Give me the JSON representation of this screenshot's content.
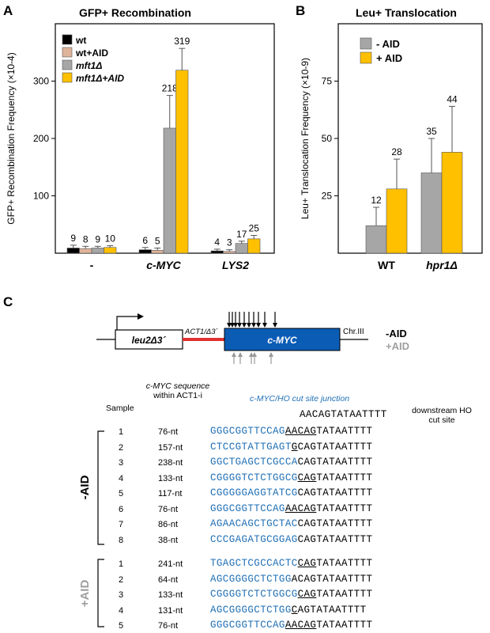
{
  "panelA": {
    "letter": "A",
    "title": "GFP+ Recombination",
    "ylabel": "GFP+ Recombination Frequency (×10-4)",
    "legend": [
      "wt",
      "wt+AID",
      "mft1Δ",
      "mft1Δ+AID"
    ]
  },
  "panelB": {
    "letter": "B",
    "title": "Leu+ Translocation",
    "ylabel": "Leu+ Translocation Frequency (×10-9)",
    "legend": [
      "- AID",
      "+ AID"
    ]
  },
  "panelC": {
    "letter": "C",
    "construct": {
      "leu_label": "leu2Δ3´",
      "act_label": "ACT1/Δ3´",
      "myc_label": "c-MYC",
      "chr_label": "Chr.III",
      "minus_aid": "-AID",
      "plus_aid": "+AID"
    },
    "headers": {
      "sample": "Sample",
      "seq_line1": "c-MYC sequence",
      "seq_line2": "within ACT1-i",
      "junction": "c-MYC/HO cut site junction",
      "downstream": "downstream HO cut site",
      "ref_seq": "AACAGTATAATTTT"
    },
    "groups": [
      {
        "label": "-AID",
        "rows": [
          {
            "n": "1",
            "len": "76-nt",
            "blue": "GGGCGGTTCCAG",
            "under": "AACAG",
            "rest": "TATAATTTT"
          },
          {
            "n": "2",
            "len": "157-nt",
            "blue": "CTCCGTATTGAGT",
            "under": "G",
            "rest": "CAGTATAATTTT"
          },
          {
            "n": "3",
            "len": "238-nt",
            "blue": "GGCTGAGCTCGCCA",
            "under": "",
            "rest": "CAGTATAATTTT"
          },
          {
            "n": "4",
            "len": "133-nt",
            "blue": "CGGGGTCTCTGGCG",
            "under": "CAG",
            "rest": "TATAATTTT"
          },
          {
            "n": "5",
            "len": "117-nt",
            "blue": "CGGGGGAGGTATCG",
            "under": "",
            "rest": "CAGTATAATTTT"
          },
          {
            "n": "6",
            "len": "76-nt",
            "blue": "GGGCGGTTCCAG",
            "under": "AACAG",
            "rest": "TATAATTTT"
          },
          {
            "n": "7",
            "len": "86-nt",
            "blue": "AGAACAGCTGCTAC",
            "under": "",
            "rest": "CAGTATAATTTT"
          },
          {
            "n": "8",
            "len": "38-nt",
            "blue": "CCCGAGATGCGGAG",
            "under": "",
            "rest": "CAGTATAATTTT"
          }
        ]
      },
      {
        "label": "+AID",
        "rows": [
          {
            "n": "1",
            "len": "241-nt",
            "blue": "TGAGCTCGCCACTC",
            "under": "CAG",
            "rest": "TATAATTTT"
          },
          {
            "n": "2",
            "len": "64-nt",
            "blue": "AGCGGGGCTCTGG",
            "under": "",
            "rest": "ACAGTATAATTTT"
          },
          {
            "n": "3",
            "len": "133-nt",
            "blue": "CGGGGTCTCTGGCG",
            "under": "CAG",
            "rest": "TATAATTTT"
          },
          {
            "n": "4",
            "len": "131-nt",
            "blue": "AGCGGGGCTCTGG",
            "under": "C",
            "rest": "AGTATAATTTT"
          },
          {
            "n": "5",
            "len": "76-nt",
            "blue": "GGGCGGTTCCAG",
            "under": "AACAG",
            "rest": "TATAATTTT"
          }
        ]
      }
    ]
  },
  "colors": {
    "wt": "#000000",
    "wt_aid": "#e0b49a",
    "mft1": "#a6a6a6",
    "mft1_aid": "#ffc000",
    "myc_box": "#0b5cb5",
    "act_line": "#e03030",
    "seq_blue": "#1f6fb5"
  },
  "chart_data": [
    {
      "type": "bar",
      "title": "GFP+ Recombination",
      "ylabel": "GFP+ Recombination Frequency (×10-4)",
      "categories": [
        "-",
        "c-MYC",
        "LYS2"
      ],
      "ylim": [
        0,
        400
      ],
      "yticks": [
        100,
        200,
        300
      ],
      "legend_position": "top-left",
      "series": [
        {
          "name": "wt",
          "values": [
            9,
            6,
            4
          ],
          "labels": [
            "9",
            "6",
            "4"
          ],
          "err": [
            5,
            4,
            3
          ]
        },
        {
          "name": "wt+AID",
          "values": [
            8,
            5,
            3
          ],
          "labels": [
            "8",
            "5",
            "3"
          ],
          "err": [
            4,
            4,
            3
          ]
        },
        {
          "name": "mft1Δ",
          "values": [
            9,
            218,
            17
          ],
          "labels": [
            "9",
            "218",
            "17"
          ],
          "err": [
            3,
            57,
            4
          ]
        },
        {
          "name": "mft1Δ+AID",
          "values": [
            10,
            319,
            25
          ],
          "labels": [
            "10",
            "319",
            "25"
          ],
          "err": [
            3,
            38,
            6
          ]
        }
      ]
    },
    {
      "type": "bar",
      "title": "Leu+ Translocation",
      "ylabel": "Leu+ Translocation Frequency (×10-9)",
      "categories": [
        "WT",
        "hpr1Δ"
      ],
      "ylim": [
        0,
        100
      ],
      "yticks": [
        25,
        50,
        75
      ],
      "legend_position": "top-left",
      "series": [
        {
          "name": "- AID",
          "values": [
            12,
            35
          ],
          "labels": [
            "12",
            "35"
          ],
          "err": [
            8,
            15
          ]
        },
        {
          "name": "+ AID",
          "values": [
            28,
            44
          ],
          "labels": [
            "28",
            "44"
          ],
          "err": [
            13,
            20
          ]
        }
      ]
    }
  ]
}
